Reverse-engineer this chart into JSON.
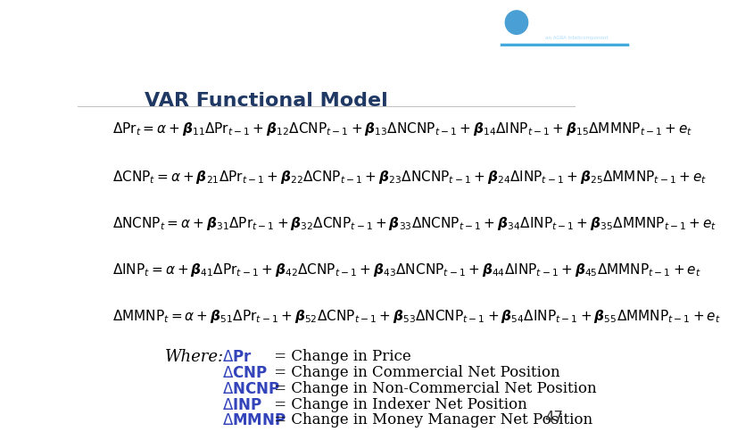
{
  "title": "VAR Functional Model",
  "title_color": "#1f3864",
  "title_fontsize": 16,
  "bg_color": "#ffffff",
  "equations": [
    "$\\Delta \\mathrm{Pr}_t = \\alpha + \\boldsymbol{\\beta}_{11}\\Delta \\mathrm{Pr}_{t-1} + \\boldsymbol{\\beta}_{12}\\Delta \\mathrm{CNP}_{t-1} + \\boldsymbol{\\beta}_{13}\\Delta \\mathrm{NCNP}_{t-1} + \\boldsymbol{\\beta}_{14}\\Delta \\mathrm{INP}_{t-1} + \\boldsymbol{\\beta}_{15}\\Delta \\mathrm{MMNP}_{t-1} + e_t$",
    "$\\Delta \\mathrm{CNP}_t = \\alpha + \\boldsymbol{\\beta}_{21}\\Delta \\mathrm{Pr}_{t-1} + \\boldsymbol{\\beta}_{22}\\Delta \\mathrm{CNP}_{t-1} + \\boldsymbol{\\beta}_{23}\\Delta \\mathrm{NCNP}_{t-1} + \\boldsymbol{\\beta}_{24}\\Delta \\mathrm{INP}_{t-1} + \\boldsymbol{\\beta}_{25}\\Delta \\mathrm{MMNP}_{t-1} + e_t$",
    "$\\Delta \\mathrm{NCNP}_t = \\alpha + \\boldsymbol{\\beta}_{31}\\Delta \\mathrm{Pr}_{t-1} + \\boldsymbol{\\beta}_{32}\\Delta \\mathrm{CNP}_{t-1} + \\boldsymbol{\\beta}_{33}\\Delta \\mathrm{NCNP}_{t-1} + \\boldsymbol{\\beta}_{34}\\Delta \\mathrm{INP}_{t-1} + \\boldsymbol{\\beta}_{35}\\Delta \\mathrm{MMNP}_{t-1} + e_t$",
    "$\\Delta \\mathrm{INP}_t = \\alpha + \\boldsymbol{\\beta}_{41}\\Delta \\mathrm{Pr}_{t-1} + \\boldsymbol{\\beta}_{42}\\Delta \\mathrm{CNP}_{t-1} + \\boldsymbol{\\beta}_{43}\\Delta \\mathrm{NCNP}_{t-1} + \\boldsymbol{\\beta}_{44}\\Delta \\mathrm{INP}_{t-1} + \\boldsymbol{\\beta}_{45}\\Delta \\mathrm{MMNP}_{t-1} + e_t$",
    "$\\Delta \\mathrm{MMNP}_t = \\alpha + \\boldsymbol{\\beta}_{51}\\Delta \\mathrm{Pr}_{t-1} + \\boldsymbol{\\beta}_{52}\\Delta \\mathrm{CNP}_{t-1} + \\boldsymbol{\\beta}_{53}\\Delta \\mathrm{NCNP}_{t-1} + \\boldsymbol{\\beta}_{54}\\Delta \\mathrm{INP}_{t-1} + \\boldsymbol{\\beta}_{55}\\Delta \\mathrm{MMNP}_{t-1} + e_t$"
  ],
  "eq_fontsize": 11,
  "eq_color": "#000000",
  "where_label": "Where:",
  "where_fontsize": 13,
  "def_symbols": [
    "$\\Delta\\mathbf{Pr}$",
    "$\\Delta\\mathbf{CNP}$",
    "$\\Delta\\mathbf{NCNP}$",
    "$\\Delta\\mathbf{INP}$",
    "$\\Delta\\mathbf{MMNP}$"
  ],
  "def_texts": [
    " = Change in Price",
    " = Change in Commercial Net Position",
    " = Change in Non-Commercial Net Position",
    " = Change in Indexer Net Position",
    " = Change in Money Manager Net Position"
  ],
  "def_sym_color": "#3344bb",
  "def_text_color": "#000000",
  "def_fontsize": 12,
  "page_number": "47",
  "yellow_color": "#f0c020",
  "red_color": "#e06060",
  "blue_color": "#2244aa"
}
